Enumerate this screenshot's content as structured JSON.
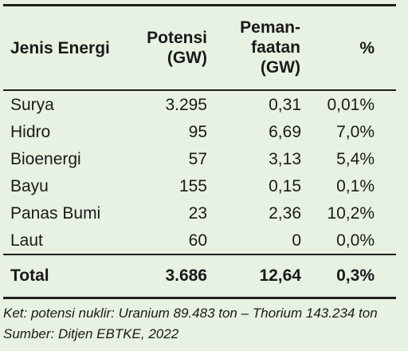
{
  "table": {
    "headers": {
      "jenis": "Jenis Energi",
      "potensi_line1": "Potensi",
      "potensi_line2": "(GW)",
      "pemanfaatan_line1": "Peman-",
      "pemanfaatan_line2": "faatan",
      "pemanfaatan_line3": "(GW)",
      "persen": "%"
    },
    "rows": [
      {
        "jenis": "Surya",
        "potensi": "3.295",
        "pemanfaatan": "0,31",
        "persen": "0,01%"
      },
      {
        "jenis": "Hidro",
        "potensi": "95",
        "pemanfaatan": "6,69",
        "persen": "7,0%"
      },
      {
        "jenis": "Bioenergi",
        "potensi": "57",
        "pemanfaatan": "3,13",
        "persen": "5,4%"
      },
      {
        "jenis": "Bayu",
        "potensi": "155",
        "pemanfaatan": "0,15",
        "persen": "0,1%"
      },
      {
        "jenis": "Panas Bumi",
        "potensi": "23",
        "pemanfaatan": "2,36",
        "persen": "10,2%"
      },
      {
        "jenis": "Laut",
        "potensi": "60",
        "pemanfaatan": "0",
        "persen": "0,0%"
      }
    ],
    "total": {
      "jenis": "Total",
      "potensi": "3.686",
      "pemanfaatan": "12,64",
      "persen": "0,3%"
    }
  },
  "notes": {
    "ket": "Ket: potensi nuklir: Uranium 89.483 ton – Thorium 143.234 ton",
    "sumber": "Sumber: Ditjen EBTKE, 2022"
  },
  "colors": {
    "background": "#e8f2e2",
    "rule": "#1f1f1f",
    "text": "#1a1a1a"
  }
}
